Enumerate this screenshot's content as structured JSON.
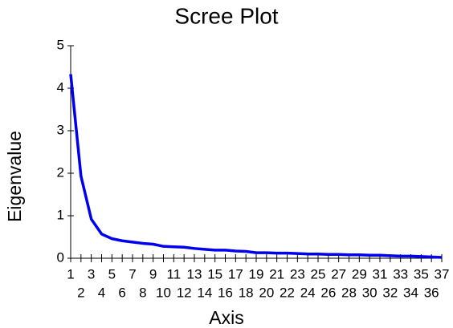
{
  "chart_data": {
    "type": "line",
    "title": "Scree Plot",
    "x_label": "Axis",
    "y_label": "Eigenvalue",
    "x": [
      1,
      2,
      3,
      4,
      5,
      6,
      7,
      8,
      9,
      10,
      11,
      12,
      13,
      14,
      15,
      16,
      17,
      18,
      19,
      20,
      21,
      22,
      23,
      24,
      25,
      26,
      27,
      28,
      29,
      30,
      31,
      32,
      33,
      34,
      35,
      36,
      37
    ],
    "series": [
      {
        "color": "#0000ee",
        "values": [
          4.33,
          1.93,
          0.92,
          0.57,
          0.46,
          0.41,
          0.38,
          0.35,
          0.33,
          0.28,
          0.27,
          0.26,
          0.23,
          0.21,
          0.19,
          0.19,
          0.17,
          0.16,
          0.13,
          0.13,
          0.12,
          0.12,
          0.11,
          0.1,
          0.1,
          0.09,
          0.09,
          0.08,
          0.08,
          0.07,
          0.07,
          0.06,
          0.05,
          0.05,
          0.04,
          0.03,
          0.02
        ]
      }
    ],
    "xlim": [
      1,
      37
    ],
    "xticks": [
      1,
      2,
      3,
      4,
      5,
      6,
      7,
      8,
      9,
      10,
      11,
      12,
      13,
      14,
      15,
      16,
      17,
      18,
      19,
      20,
      21,
      22,
      23,
      24,
      25,
      26,
      27,
      28,
      29,
      30,
      31,
      32,
      33,
      34,
      35,
      36,
      37
    ],
    "ylim": [
      0,
      5
    ],
    "yticks": [
      0,
      1,
      2,
      3,
      4,
      5
    ]
  }
}
